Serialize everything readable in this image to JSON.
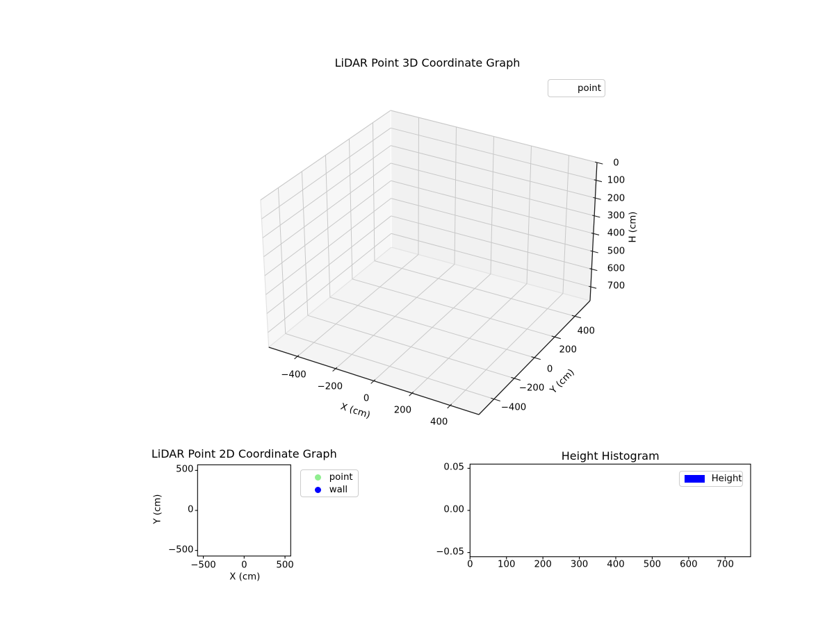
{
  "figure": {
    "background": "#ffffff"
  },
  "chart_data": [
    {
      "id": "lidar-3d",
      "type": "scatter3d",
      "title": "LiDAR Point 3D Coordinate Graph",
      "xlabel": "X (cm)",
      "ylabel": "Y (cm)",
      "zlabel": "H (cm)",
      "xlim": [
        -550,
        550
      ],
      "ylim": [
        -550,
        550
      ],
      "zlim": [
        0,
        778
      ],
      "zaxis_inverted": true,
      "grid": true,
      "xticks": [
        -400,
        -200,
        0,
        200,
        400
      ],
      "xtick_labels": [
        "−400",
        "−200",
        "0",
        "200",
        "400"
      ],
      "yticks": [
        -400,
        -200,
        0,
        200,
        400
      ],
      "ytick_labels": [
        "−400",
        "−200",
        "0",
        "200",
        "400"
      ],
      "zticks": [
        0,
        100,
        200,
        300,
        400,
        500,
        600,
        700
      ],
      "ztick_labels": [
        "0",
        "100",
        "200",
        "300",
        "400",
        "500",
        "600",
        "700"
      ],
      "legend": [
        {
          "label": "point",
          "marker": "invisible"
        }
      ],
      "series": [
        {
          "name": "point",
          "points": []
        }
      ]
    },
    {
      "id": "lidar-2d",
      "type": "scatter",
      "title": "LiDAR Point 2D Coordinate Graph",
      "xlabel": "X (cm)",
      "ylabel": "Y (cm)",
      "xlim": [
        -570,
        570
      ],
      "ylim": [
        -570,
        570
      ],
      "grid": false,
      "xticks": [
        -500,
        0,
        500
      ],
      "xtick_labels": [
        "−500",
        "0",
        "500"
      ],
      "yticks": [
        500,
        0,
        -500
      ],
      "ytick_labels": [
        "500",
        "0",
        "−500"
      ],
      "legend": [
        {
          "label": "point",
          "color": "#90ee90"
        },
        {
          "label": "wall",
          "color": "#0000ff"
        }
      ],
      "series": [
        {
          "name": "point",
          "points": []
        },
        {
          "name": "wall",
          "points": []
        }
      ]
    },
    {
      "id": "height-histogram",
      "type": "bar",
      "title": "Height Histogram",
      "xlabel": "",
      "ylabel": "",
      "xlim": [
        0,
        770
      ],
      "ylim": [
        -0.055,
        0.055
      ],
      "grid": false,
      "xticks": [
        0,
        100,
        200,
        300,
        400,
        500,
        600,
        700
      ],
      "xtick_labels": [
        "0",
        "100",
        "200",
        "300",
        "400",
        "500",
        "600",
        "700"
      ],
      "yticks": [
        0.05,
        0.0,
        -0.05
      ],
      "ytick_labels": [
        "0.05",
        "0.00",
        "−0.05"
      ],
      "legend": [
        {
          "label": "Height",
          "color": "#0000ff"
        }
      ],
      "values": []
    }
  ]
}
